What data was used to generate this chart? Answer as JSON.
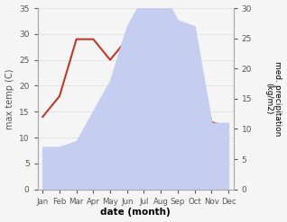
{
  "months": [
    "Jan",
    "Feb",
    "Mar",
    "Apr",
    "May",
    "Jun",
    "Jul",
    "Aug",
    "Sep",
    "Oct",
    "Nov",
    "Dec"
  ],
  "temperature": [
    14,
    18,
    29,
    29,
    25,
    29,
    32,
    33,
    30,
    27,
    13,
    12
  ],
  "precipitation": [
    7,
    7,
    8,
    13,
    18,
    27,
    32,
    33,
    28,
    27,
    11,
    11
  ],
  "temp_color": "#c0392b",
  "precip_fill_color": "#c5cdf0",
  "ylabel_left": "max temp (C)",
  "ylabel_right": "med. precipitation\n(kg/m2)",
  "xlabel": "date (month)",
  "ylim_left": [
    0,
    35
  ],
  "ylim_right": [
    0,
    30
  ],
  "yticks_left": [
    0,
    5,
    10,
    15,
    20,
    25,
    30,
    35
  ],
  "yticks_right": [
    0,
    5,
    10,
    15,
    20,
    25,
    30
  ],
  "spine_color": "#aaaaaa",
  "tick_color": "#555555",
  "background_color": "#f5f5f5"
}
